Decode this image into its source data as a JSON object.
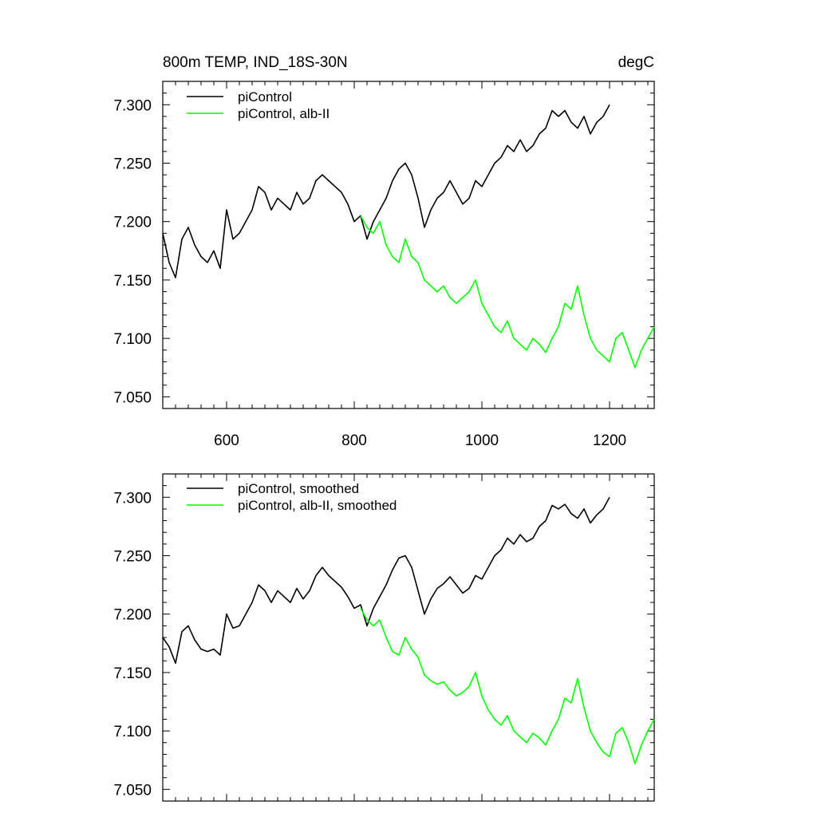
{
  "chart_data": [
    {
      "type": "line",
      "title": "800m TEMP, IND_18S-30N",
      "units": "degC",
      "xlim": [
        500,
        1270
      ],
      "ylim": [
        7.04,
        7.32
      ],
      "x_ticks": [
        600,
        800,
        1000,
        1200
      ],
      "x_tick_labels": [
        "600",
        "800",
        "1000",
        "1200"
      ],
      "y_ticks": [
        7.05,
        7.1,
        7.15,
        7.2,
        7.25,
        7.3
      ],
      "y_tick_labels": [
        "7.050",
        "7.100",
        "7.150",
        "7.200",
        "7.250",
        "7.300"
      ],
      "legend_position": "top-left",
      "series": [
        {
          "name": "piControl",
          "color": "#000000",
          "x": [
            500,
            510,
            520,
            530,
            540,
            550,
            560,
            570,
            580,
            590,
            600,
            610,
            620,
            630,
            640,
            650,
            660,
            670,
            680,
            690,
            700,
            710,
            720,
            730,
            740,
            750,
            760,
            770,
            780,
            790,
            800,
            810,
            820,
            830,
            840,
            850,
            860,
            870,
            880,
            890,
            900,
            910,
            920,
            930,
            940,
            950,
            960,
            970,
            980,
            990,
            1000,
            1010,
            1020,
            1030,
            1040,
            1050,
            1060,
            1070,
            1080,
            1090,
            1100,
            1110,
            1120,
            1130,
            1140,
            1150,
            1160,
            1170,
            1180,
            1190,
            1200
          ],
          "values": [
            7.19,
            7.165,
            7.152,
            7.185,
            7.195,
            7.18,
            7.17,
            7.165,
            7.175,
            7.16,
            7.21,
            7.185,
            7.19,
            7.2,
            7.21,
            7.23,
            7.225,
            7.21,
            7.22,
            7.215,
            7.21,
            7.225,
            7.215,
            7.22,
            7.235,
            7.24,
            7.235,
            7.23,
            7.225,
            7.215,
            7.2,
            7.205,
            7.185,
            7.2,
            7.21,
            7.22,
            7.235,
            7.245,
            7.25,
            7.24,
            7.22,
            7.195,
            7.21,
            7.22,
            7.225,
            7.235,
            7.225,
            7.215,
            7.22,
            7.235,
            7.23,
            7.24,
            7.25,
            7.255,
            7.265,
            7.26,
            7.27,
            7.26,
            7.265,
            7.275,
            7.28,
            7.295,
            7.29,
            7.295,
            7.285,
            7.28,
            7.29,
            7.275,
            7.285,
            7.29,
            7.3
          ]
        },
        {
          "name": "piControl, alb-II",
          "color": "#00ff00",
          "x": [
            810,
            820,
            830,
            840,
            850,
            860,
            870,
            880,
            890,
            900,
            910,
            920,
            930,
            940,
            950,
            960,
            970,
            980,
            990,
            1000,
            1010,
            1020,
            1030,
            1040,
            1050,
            1060,
            1070,
            1080,
            1090,
            1100,
            1110,
            1120,
            1130,
            1140,
            1150,
            1160,
            1170,
            1180,
            1190,
            1200,
            1210,
            1220,
            1230,
            1240,
            1250,
            1260,
            1270
          ],
          "values": [
            7.205,
            7.195,
            7.19,
            7.2,
            7.18,
            7.17,
            7.165,
            7.185,
            7.17,
            7.165,
            7.15,
            7.145,
            7.14,
            7.145,
            7.135,
            7.13,
            7.135,
            7.14,
            7.15,
            7.13,
            7.12,
            7.11,
            7.105,
            7.115,
            7.1,
            7.095,
            7.09,
            7.1,
            7.095,
            7.088,
            7.1,
            7.11,
            7.13,
            7.125,
            7.145,
            7.12,
            7.1,
            7.09,
            7.085,
            7.08,
            7.1,
            7.105,
            7.09,
            7.075,
            7.09,
            7.1,
            7.11
          ]
        }
      ]
    },
    {
      "type": "line",
      "xlim": [
        500,
        1270
      ],
      "ylim": [
        7.04,
        7.32
      ],
      "x_ticks": [
        600,
        800,
        1000,
        1200
      ],
      "y_ticks": [
        7.05,
        7.1,
        7.15,
        7.2,
        7.25,
        7.3
      ],
      "y_tick_labels": [
        "7.050",
        "7.100",
        "7.150",
        "7.200",
        "7.250",
        "7.300"
      ],
      "legend_position": "top-left",
      "series": [
        {
          "name": "piControl, smoothed",
          "color": "#000000",
          "x": [
            500,
            510,
            520,
            530,
            540,
            550,
            560,
            570,
            580,
            590,
            600,
            610,
            620,
            630,
            640,
            650,
            660,
            670,
            680,
            690,
            700,
            710,
            720,
            730,
            740,
            750,
            760,
            770,
            780,
            790,
            800,
            810,
            820,
            830,
            840,
            850,
            860,
            870,
            880,
            890,
            900,
            910,
            920,
            930,
            940,
            950,
            960,
            970,
            980,
            990,
            1000,
            1010,
            1020,
            1030,
            1040,
            1050,
            1060,
            1070,
            1080,
            1090,
            1100,
            1110,
            1120,
            1130,
            1140,
            1150,
            1160,
            1170,
            1180,
            1190,
            1200
          ],
          "values": [
            7.18,
            7.172,
            7.158,
            7.185,
            7.19,
            7.178,
            7.17,
            7.168,
            7.17,
            7.165,
            7.2,
            7.188,
            7.19,
            7.2,
            7.21,
            7.225,
            7.22,
            7.21,
            7.22,
            7.215,
            7.21,
            7.222,
            7.213,
            7.22,
            7.233,
            7.24,
            7.233,
            7.228,
            7.223,
            7.215,
            7.205,
            7.208,
            7.19,
            7.205,
            7.215,
            7.225,
            7.238,
            7.248,
            7.25,
            7.24,
            7.22,
            7.2,
            7.213,
            7.222,
            7.226,
            7.232,
            7.225,
            7.218,
            7.222,
            7.233,
            7.23,
            7.24,
            7.25,
            7.255,
            7.265,
            7.26,
            7.268,
            7.262,
            7.265,
            7.275,
            7.28,
            7.293,
            7.29,
            7.294,
            7.286,
            7.282,
            7.29,
            7.278,
            7.285,
            7.29,
            7.3
          ]
        },
        {
          "name": "piControl, alb-II, smoothed",
          "color": "#00ff00",
          "x": [
            810,
            820,
            830,
            840,
            850,
            860,
            870,
            880,
            890,
            900,
            910,
            920,
            930,
            940,
            950,
            960,
            970,
            980,
            990,
            1000,
            1010,
            1020,
            1030,
            1040,
            1050,
            1060,
            1070,
            1080,
            1090,
            1100,
            1110,
            1120,
            1130,
            1140,
            1150,
            1160,
            1170,
            1180,
            1190,
            1200,
            1210,
            1220,
            1230,
            1240,
            1250,
            1260,
            1270
          ],
          "values": [
            7.205,
            7.195,
            7.19,
            7.195,
            7.18,
            7.168,
            7.165,
            7.18,
            7.17,
            7.163,
            7.148,
            7.143,
            7.14,
            7.142,
            7.135,
            7.13,
            7.133,
            7.138,
            7.15,
            7.13,
            7.118,
            7.11,
            7.105,
            7.113,
            7.1,
            7.095,
            7.09,
            7.098,
            7.094,
            7.088,
            7.1,
            7.11,
            7.128,
            7.124,
            7.145,
            7.12,
            7.1,
            7.09,
            7.082,
            7.078,
            7.098,
            7.103,
            7.09,
            7.072,
            7.088,
            7.1,
            7.11
          ]
        }
      ]
    }
  ]
}
